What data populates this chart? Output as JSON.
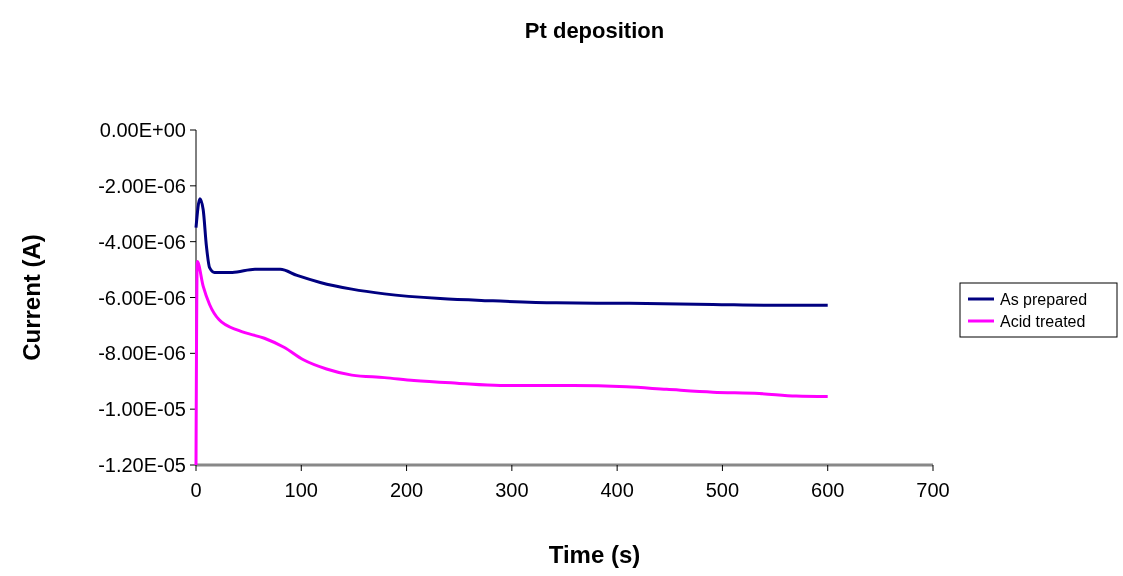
{
  "chart_data": {
    "type": "line",
    "title": "Pt deposition",
    "xlabel": "Time (s)",
    "ylabel": "Current (A)",
    "xlim": [
      0,
      700
    ],
    "xticks": [
      0,
      100,
      200,
      300,
      400,
      500,
      600,
      700
    ],
    "ylim": [
      -1.2e-05,
      0
    ],
    "yticks": [
      {
        "value": 0,
        "label": "0.00E+00"
      },
      {
        "value": -2e-06,
        "label": "-2.00E-06"
      },
      {
        "value": -4e-06,
        "label": "-4.00E-06"
      },
      {
        "value": -6e-06,
        "label": "-6.00E-06"
      },
      {
        "value": -8e-06,
        "label": "-8.00E-06"
      },
      {
        "value": -1e-05,
        "label": "-1.00E-05"
      },
      {
        "value": -1.2e-05,
        "label": "-1.20E-05"
      }
    ],
    "grid": false,
    "legend": "right",
    "marker": "none",
    "line_style": "solid",
    "series": [
      {
        "name": "As prepared",
        "color": "#000080",
        "x": [
          0,
          3.7,
          6.8,
          9.9,
          12.9,
          17.6,
          34.5,
          56,
          80,
          96,
          118,
          148,
          179,
          232,
          282,
          342,
          412,
          491,
          551,
          600
        ],
        "values": [
          -3.5e-06,
          -2.46e-06,
          -2.85e-06,
          -4.16e-06,
          -4.93e-06,
          -5.1e-06,
          -5.1e-06,
          -4.99e-06,
          -4.99e-06,
          -5.21e-06,
          -5.46e-06,
          -5.7e-06,
          -5.87e-06,
          -6.04e-06,
          -6.12e-06,
          -6.19e-06,
          -6.21e-06,
          -6.25e-06,
          -6.28e-06,
          -6.28e-06
        ]
      },
      {
        "name": "Acid treated",
        "color": "#ff00ff",
        "x": [
          0,
          1.2,
          6.8,
          12.9,
          22,
          41,
          65,
          84,
          102,
          124,
          148,
          179,
          207,
          248,
          289,
          358,
          409,
          447,
          491,
          535,
          570,
          600
        ],
        "values": [
          -1.2e-05,
          -4.71e-06,
          -5.59e-06,
          -6.25e-06,
          -6.8e-06,
          -7.19e-06,
          -7.46e-06,
          -7.79e-06,
          -8.23e-06,
          -8.56e-06,
          -8.78e-06,
          -8.87e-06,
          -8.97e-06,
          -9.07e-06,
          -9.15e-06,
          -9.15e-06,
          -9.2e-06,
          -9.29e-06,
          -9.39e-06,
          -9.44e-06,
          -9.53e-06,
          -9.55e-06
        ]
      }
    ]
  }
}
